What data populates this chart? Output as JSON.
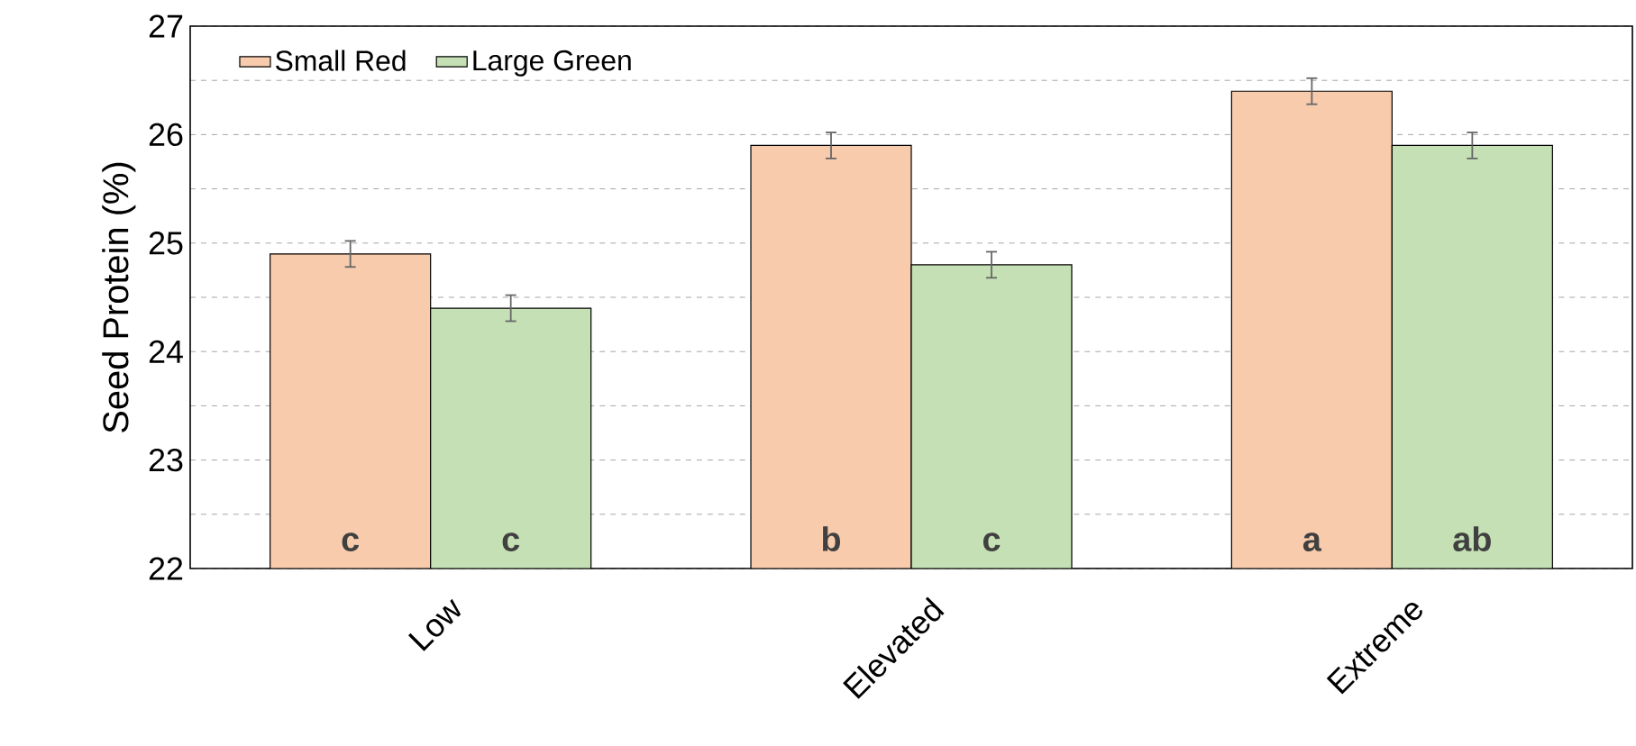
{
  "chart_data": {
    "type": "bar",
    "ylabel": "Seed Protein (%)",
    "categories": [
      "Low",
      "Elevated",
      "Extreme"
    ],
    "series": [
      {
        "name": "Small Red",
        "color": "#f8cbad",
        "values": [
          24.9,
          25.9,
          26.4
        ],
        "errors": [
          0.12,
          0.12,
          0.12
        ],
        "value_labels": [
          "c",
          "b",
          "a"
        ]
      },
      {
        "name": "Large Green",
        "color": "#c5e0b4",
        "values": [
          24.4,
          24.8,
          25.9
        ],
        "errors": [
          0.12,
          0.12,
          0.12
        ],
        "value_labels": [
          "c",
          "c",
          "ab"
        ]
      }
    ],
    "ylim": [
      22,
      27
    ],
    "yticks": [
      22,
      {
        "value": 22.5,
        "label": null
      },
      23,
      {
        "value": 23.5,
        "label": null
      },
      24,
      {
        "value": 24.5,
        "label": null
      },
      25,
      {
        "value": 25.5,
        "label": null
      },
      26,
      {
        "value": 26.5,
        "label": null
      },
      27
    ],
    "grid": "y",
    "legend": "top left"
  }
}
